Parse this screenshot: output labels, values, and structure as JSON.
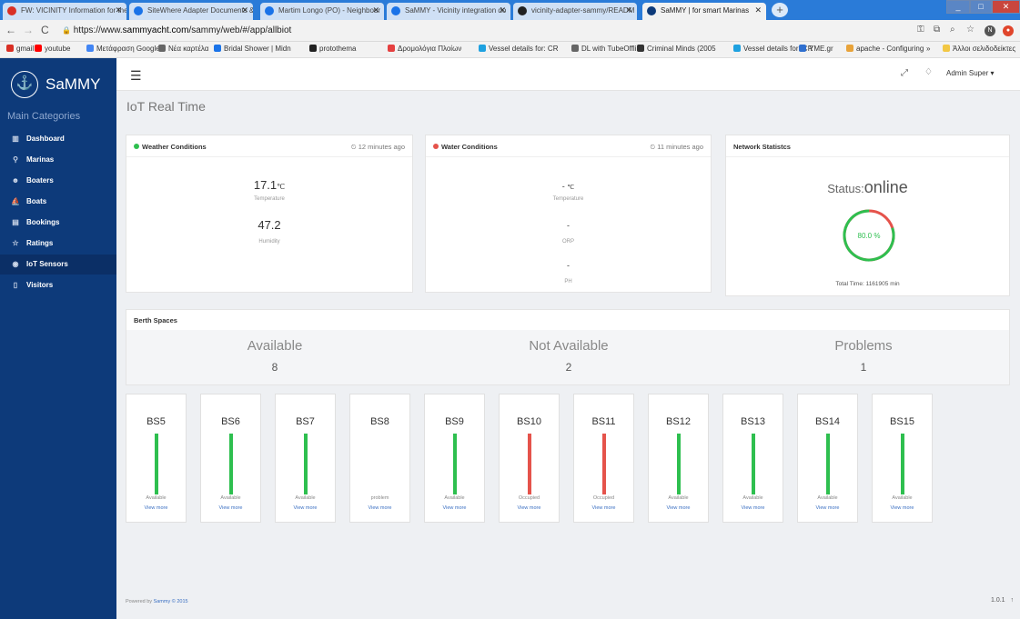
{
  "browser": {
    "tabs": [
      {
        "title": "FW: VICINITY Information for the",
        "icon": "gmail-icon",
        "color": "#d93025"
      },
      {
        "title": "SiteWhere Adapter Documents &",
        "icon": "drive-icon",
        "color": "#1a73e8"
      },
      {
        "title": "Martim Longo (PO) - Neighbour",
        "icon": "drive-icon",
        "color": "#1a73e8"
      },
      {
        "title": "SaMMY - Vicinity integration do",
        "icon": "drive-icon",
        "color": "#1a73e8"
      },
      {
        "title": "vicinity-adapter-sammy/READM",
        "icon": "github-icon",
        "color": "#222222"
      },
      {
        "title": "SaMMY | for smart Marinas",
        "icon": "sammy-icon",
        "color": "#0d3a7a"
      }
    ],
    "url_prefix": "https://www.",
    "url_domain": "sammyacht.com",
    "url_path": "/sammy/web/#/app/allbiot",
    "bookmarks": [
      "gmail",
      "youtube",
      "Μετάφραση Google",
      "Νέα καρτέλα",
      "Bridal Shower | Midn",
      "protothema",
      "Δρομολόγια Πλοίων",
      "Vessel details for: CR",
      "DL with TubeOffline",
      "Criminal Minds (2005",
      "Vessel details for: CR",
      "YME.gr",
      "apache - Configuring"
    ],
    "bookmarks_more": "»",
    "other_bookmarks": "Άλλοι σελιδοδείκτες"
  },
  "sidebar": {
    "brand": "SaMMY",
    "section": "Main Categories",
    "items": [
      {
        "label": "Dashboard",
        "icon": "bar-chart-icon"
      },
      {
        "label": "Marinas",
        "icon": "map-pin-icon"
      },
      {
        "label": "Boaters",
        "icon": "user-icon"
      },
      {
        "label": "Boats",
        "icon": "boat-icon"
      },
      {
        "label": "Bookings",
        "icon": "calendar-icon"
      },
      {
        "label": "Ratings",
        "icon": "star-icon"
      },
      {
        "label": "IoT Sensors",
        "icon": "sensor-icon"
      },
      {
        "label": "Visitors",
        "icon": "door-icon"
      }
    ],
    "active": "IoT Sensors"
  },
  "header": {
    "user": "Admin Super ▾"
  },
  "page": {
    "title": "IoT Real Time"
  },
  "weather": {
    "title": "Weather Conditions",
    "status_color": "#2ebf4f",
    "ago": "⏲ 12 minutes ago",
    "temperature": "17.1",
    "temp_unit": "℃",
    "temperature_label": "Temperature",
    "humidity": "47.2",
    "humidity_label": "Humidity"
  },
  "water": {
    "title": "Water Conditions",
    "status_color": "#e5534b",
    "ago": "⏲ 11 minutes ago",
    "temperature": "-",
    "temp_unit": "℃",
    "temperature_label": "Temperature",
    "orp": "-",
    "orp_label": "ORP",
    "ph": "-",
    "ph_label": "PH"
  },
  "network": {
    "title": "Network Statistcs",
    "status_prefix": "Status:",
    "status": "online",
    "percent": 80.0,
    "percent_label": "80.0 %",
    "total_time": "Total Time: 1161905 min",
    "ring_ok_color": "#2ebf4f",
    "ring_bad_color": "#e5534b"
  },
  "berths": {
    "title": "Berth Spaces",
    "summary": [
      {
        "label": "Available",
        "count": "8"
      },
      {
        "label": "Not Available",
        "count": "2"
      },
      {
        "label": "Problems",
        "count": "1"
      }
    ],
    "view_more": "View more",
    "spaces": [
      {
        "name": "BS5",
        "status": "Available",
        "color": "#2ebf4f"
      },
      {
        "name": "BS6",
        "status": "Available",
        "color": "#2ebf4f"
      },
      {
        "name": "BS7",
        "status": "Available",
        "color": "#2ebf4f"
      },
      {
        "name": "BS8",
        "status": "problem",
        "color": ""
      },
      {
        "name": "BS9",
        "status": "Available",
        "color": "#2ebf4f"
      },
      {
        "name": "BS10",
        "status": "Occupied",
        "color": "#e5534b"
      },
      {
        "name": "BS11",
        "status": "Occupied",
        "color": "#e5534b"
      },
      {
        "name": "BS12",
        "status": "Available",
        "color": "#2ebf4f"
      },
      {
        "name": "BS13",
        "status": "Available",
        "color": "#2ebf4f"
      },
      {
        "name": "BS14",
        "status": "Available",
        "color": "#2ebf4f"
      },
      {
        "name": "BS15",
        "status": "Available",
        "color": "#2ebf4f"
      }
    ]
  },
  "footer": {
    "prefix": "Powered by ",
    "brand": "Sammy © 2015",
    "version": "1.0.1",
    "scroll_top": "↑"
  }
}
